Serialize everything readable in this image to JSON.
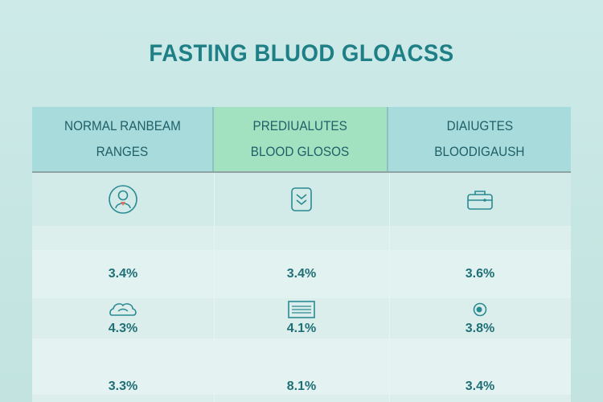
{
  "title": "FASTING BLUOD GLOACSS",
  "columns": [
    {
      "line1": "NORMAL RANBEAM",
      "line2": "RANGES"
    },
    {
      "line1": "PREDIUALUTES",
      "line2": "BLOOD GLOSOS"
    },
    {
      "line1": "DIAIUGTES",
      "line2": "BLOODIGAUSH"
    }
  ],
  "rows": [
    {
      "icons": [
        "person-icon",
        "shield-icon",
        "briefcase-icon"
      ]
    },
    {
      "values": [
        "3.4%",
        "3.4%",
        "3.6%"
      ]
    },
    {
      "icons": [
        "cloud-icon",
        "list-icon",
        "eye-icon"
      ]
    },
    {
      "values": [
        "4.3%",
        "4.1%",
        "3.8%"
      ]
    },
    {
      "values": [
        "3.3%",
        "8.1%",
        "3.4%"
      ]
    }
  ],
  "colors": {
    "title": "#1e7f86",
    "header_teal": "#a8dbdc",
    "header_green": "#a3e2c0",
    "icon_teal": "#2a8a92",
    "icon_accent": "#e07060"
  }
}
